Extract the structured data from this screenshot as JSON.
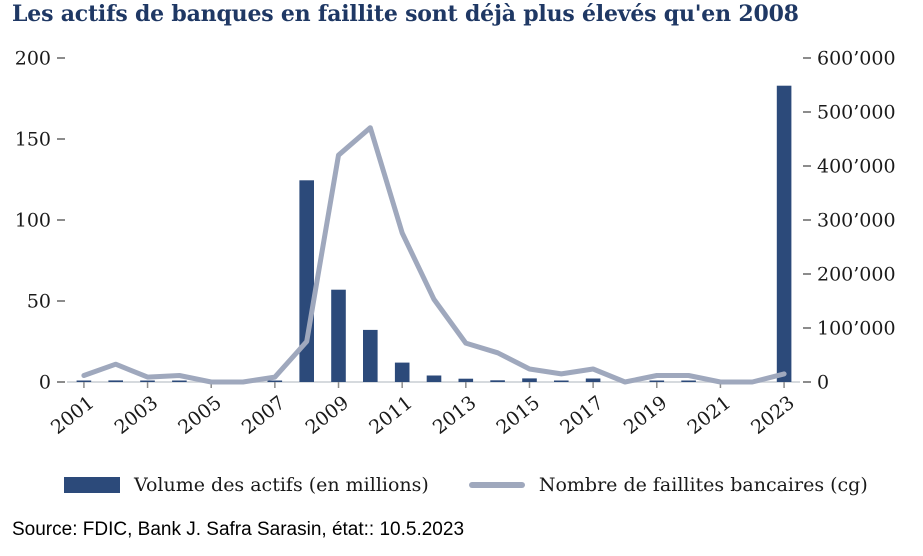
{
  "title": "Les actifs de banques en faillite sont déjà plus élevés qu'en 2008",
  "source": "Source: FDIC, Bank J. Safra Sarasin, état:: 10.5.2023",
  "legend": {
    "bars": "Volume des actifs (en millions)",
    "line": "Nombre de faillites bancaires (cg)"
  },
  "colors": {
    "title": "#1f3864",
    "bar": "#2c4a7a",
    "line": "#9fa8bd",
    "tick": "#8c8c8c",
    "axis_line": "#c9cdd4",
    "text": "#1a1a1a"
  },
  "chart_data": {
    "type": "bar+line",
    "title": "Les actifs de banques en faillite sont déjà plus élevés qu'en 2008",
    "x": [
      2001,
      2002,
      2003,
      2004,
      2005,
      2006,
      2007,
      2008,
      2009,
      2010,
      2011,
      2012,
      2013,
      2014,
      2015,
      2016,
      2017,
      2018,
      2019,
      2020,
      2021,
      2022,
      2023
    ],
    "x_tick_step": 2,
    "series": [
      {
        "name": "Volume des actifs (en millions)",
        "type": "bar",
        "axis": "right",
        "values": [
          2400,
          2900,
          1100,
          170,
          0,
          0,
          2600,
          373600,
          170900,
          96500,
          36000,
          12100,
          6100,
          3100,
          6700,
          300,
          6500,
          0,
          200,
          500,
          0,
          0,
          548700
        ]
      },
      {
        "name": "Nombre de faillites bancaires (cg)",
        "type": "line",
        "axis": "left",
        "values": [
          4,
          11,
          3,
          4,
          0,
          0,
          3,
          25,
          140,
          157,
          92,
          51,
          24,
          18,
          8,
          5,
          8,
          0,
          4,
          4,
          0,
          0,
          5
        ]
      }
    ],
    "left_axis": {
      "range": [
        0,
        200
      ],
      "tick_values": [
        0,
        50,
        100,
        150,
        200
      ],
      "tick_labels": [
        "0",
        "50",
        "100",
        "150",
        "200"
      ]
    },
    "right_axis": {
      "range": [
        0,
        600000
      ],
      "tick_values": [
        0,
        100000,
        200000,
        300000,
        400000,
        500000,
        600000
      ],
      "tick_labels": [
        "0",
        "100’000",
        "200’000",
        "300’000",
        "400’000",
        "500’000",
        "600’000"
      ]
    },
    "grid": false,
    "legend_position": "bottom"
  }
}
